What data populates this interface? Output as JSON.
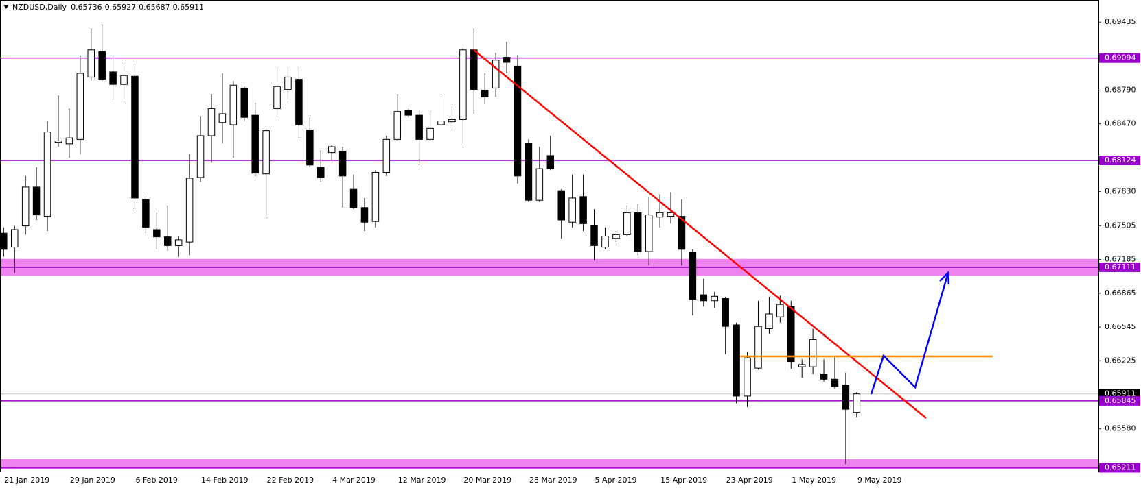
{
  "chart_data": {
    "type": "candlestick",
    "title": "NZDUSD,Daily",
    "header_values": [
      0.65736,
      0.65927,
      0.65687,
      0.65911
    ],
    "categories": [
      "21 Jan 2019",
      null,
      null,
      null,
      null,
      null,
      "29 Jan 2019",
      null,
      null,
      null,
      null,
      null,
      "6 Feb 2019",
      null,
      null,
      null,
      null,
      null,
      "14 Feb 2019",
      null,
      null,
      null,
      null,
      null,
      "22 Feb 2019",
      null,
      null,
      null,
      null,
      null,
      "4 Mar 2019",
      null,
      null,
      null,
      null,
      null,
      "12 Mar 2019",
      null,
      null,
      null,
      null,
      null,
      "20 Mar 2019",
      null,
      null,
      null,
      null,
      null,
      "28 Mar 2019",
      null,
      null,
      null,
      null,
      null,
      "5 Apr 2019",
      null,
      null,
      null,
      null,
      null,
      "15 Apr 2019",
      null,
      null,
      null,
      null,
      null,
      "23 Apr 2019",
      null,
      null,
      null,
      null,
      null,
      "1 May 2019",
      null,
      null,
      null,
      null,
      null,
      "9 May 2019"
    ],
    "ohlc": [
      [
        0.67434,
        0.67489,
        0.67211,
        0.67281
      ],
      [
        0.67302,
        0.67503,
        0.67058,
        0.67468
      ],
      [
        0.67503,
        0.67976,
        0.6742,
        0.67871
      ],
      [
        0.67871,
        0.68059,
        0.67559,
        0.67607
      ],
      [
        0.67594,
        0.68497,
        0.67454,
        0.68393
      ],
      [
        0.68295,
        0.6874,
        0.68254,
        0.68309
      ],
      [
        0.68281,
        0.68615,
        0.68149,
        0.68337
      ],
      [
        0.68323,
        0.69122,
        0.68184,
        0.68949
      ],
      [
        0.68914,
        0.69379,
        0.68879,
        0.69171
      ],
      [
        0.69157,
        0.69414,
        0.68865,
        0.68893
      ],
      [
        0.68962,
        0.69087,
        0.68705,
        0.68844
      ],
      [
        0.68844,
        0.69053,
        0.68671,
        0.68928
      ],
      [
        0.68921,
        0.69039,
        0.67663,
        0.67767
      ],
      [
        0.67753,
        0.67781,
        0.67434,
        0.67489
      ],
      [
        0.67468,
        0.67628,
        0.67281,
        0.67399
      ],
      [
        0.67399,
        0.67698,
        0.67267,
        0.67316
      ],
      [
        0.67316,
        0.67406,
        0.67211,
        0.67371
      ],
      [
        0.6735,
        0.68184,
        0.67225,
        0.67955
      ],
      [
        0.67962,
        0.68545,
        0.6792,
        0.68358
      ],
      [
        0.68358,
        0.68754,
        0.68101,
        0.68615
      ],
      [
        0.68483,
        0.68949,
        0.68288,
        0.68566
      ],
      [
        0.68462,
        0.68879,
        0.68149,
        0.68837
      ],
      [
        0.6881,
        0.68824,
        0.68497,
        0.68532
      ],
      [
        0.68552,
        0.68671,
        0.67976,
        0.68003
      ],
      [
        0.67996,
        0.68427,
        0.67573,
        0.68406
      ],
      [
        0.68615,
        0.69018,
        0.68532,
        0.68824
      ],
      [
        0.68796,
        0.69018,
        0.68705,
        0.68914
      ],
      [
        0.68893,
        0.69018,
        0.68337,
        0.68462
      ],
      [
        0.68413,
        0.68532,
        0.68059,
        0.6808
      ],
      [
        0.68059,
        0.68219,
        0.6792,
        0.67962
      ],
      [
        0.68198,
        0.68267,
        0.68128,
        0.68254
      ],
      [
        0.68212,
        0.68254,
        0.67677,
        0.67976
      ],
      [
        0.6785,
        0.67989,
        0.67663,
        0.67677
      ],
      [
        0.67677,
        0.67767,
        0.67454,
        0.67538
      ],
      [
        0.67545,
        0.68031,
        0.67489,
        0.6801
      ],
      [
        0.6801,
        0.68358,
        0.67976,
        0.68323
      ],
      [
        0.68323,
        0.68754,
        0.68309,
        0.68587
      ],
      [
        0.68601,
        0.68615,
        0.68532,
        0.68552
      ],
      [
        0.68552,
        0.68601,
        0.6808,
        0.68323
      ],
      [
        0.68323,
        0.68601,
        0.68309,
        0.68427
      ],
      [
        0.68462,
        0.68754,
        0.68448,
        0.68497
      ],
      [
        0.6849,
        0.68636,
        0.68406,
        0.68511
      ],
      [
        0.68511,
        0.69192,
        0.68288,
        0.69171
      ],
      [
        0.69171,
        0.69379,
        0.68566,
        0.68796
      ],
      [
        0.68789,
        0.68949,
        0.68657,
        0.68726
      ],
      [
        0.6881,
        0.69143,
        0.68726,
        0.69074
      ],
      [
        0.69101,
        0.69247,
        0.68949,
        0.69053
      ],
      [
        0.69018,
        0.69122,
        0.67906,
        0.67976
      ],
      [
        0.68288,
        0.68323,
        0.67732,
        0.67746
      ],
      [
        0.67746,
        0.68254,
        0.67732,
        0.68045
      ],
      [
        0.6817,
        0.68358,
        0.68031,
        0.68045
      ],
      [
        0.67837,
        0.6785,
        0.67385,
        0.67559
      ],
      [
        0.67538,
        0.67989,
        0.67489,
        0.67767
      ],
      [
        0.67781,
        0.67989,
        0.67454,
        0.67524
      ],
      [
        0.6751,
        0.67663,
        0.67176,
        0.67316
      ],
      [
        0.67302,
        0.67489,
        0.67281,
        0.67406
      ],
      [
        0.67385,
        0.67454,
        0.6735,
        0.6742
      ],
      [
        0.6742,
        0.67698,
        0.67406,
        0.67628
      ],
      [
        0.67628,
        0.67711,
        0.67225,
        0.6726
      ],
      [
        0.6726,
        0.67781,
        0.67128,
        0.67607
      ],
      [
        0.67587,
        0.67802,
        0.67489,
        0.67628
      ],
      [
        0.67594,
        0.67823,
        0.67524,
        0.67628
      ],
      [
        0.67594,
        0.67753,
        0.67128,
        0.67281
      ],
      [
        0.67253,
        0.67281,
        0.66655,
        0.66808
      ],
      [
        0.6685,
        0.67003,
        0.66739,
        0.66794
      ],
      [
        0.66794,
        0.66878,
        0.66725,
        0.66836
      ],
      [
        0.66815,
        0.66829,
        0.66287,
        0.66551
      ],
      [
        0.66565,
        0.66586,
        0.65821,
        0.6589
      ],
      [
        0.6589,
        0.66308,
        0.65786,
        0.66252
      ],
      [
        0.66155,
        0.66794,
        0.66141,
        0.66551
      ],
      [
        0.6653,
        0.66829,
        0.66481,
        0.66669
      ],
      [
        0.66641,
        0.66843,
        0.66586,
        0.66759
      ],
      [
        0.66739,
        0.66794,
        0.66148,
        0.66217
      ],
      [
        0.66168,
        0.66238,
        0.66064,
        0.66189
      ],
      [
        0.66168,
        0.6653,
        0.66099,
        0.66426
      ],
      [
        0.66099,
        0.66238,
        0.66029,
        0.6605
      ],
      [
        0.6605,
        0.66273,
        0.6596,
        0.65981
      ],
      [
        0.65995,
        0.66113,
        0.65244,
        0.65765
      ],
      [
        0.65736,
        0.65927,
        0.65687,
        0.65911
      ]
    ],
    "up_color": "#ffffff",
    "down_color": "#000000",
    "ylim": [
      0.65175,
      0.69644
    ],
    "yticks": [
      0.69435,
      {
        "value": 0.6879,
        "label": "0.68790"
      },
      {
        "value": 0.6847,
        "label": "0.68470"
      },
      {
        "value": 0.6783,
        "label": "0.67830"
      },
      0.67505,
      0.67185,
      0.66865,
      0.66545,
      0.66225,
      {
        "value": 0.6558,
        "label": "0.65580"
      }
    ],
    "levels": [
      {
        "value": 0.69094,
        "color": "#9900cc"
      },
      {
        "value": 0.68124,
        "color": "#9900cc"
      },
      {
        "value": 0.67111,
        "color": "#9900cc"
      },
      {
        "value": 0.65845,
        "color": "#9900cc"
      },
      {
        "value": 0.65211,
        "color": "#9900cc"
      }
    ],
    "zones": [
      {
        "range": [
          0.6719,
          0.6703
        ],
        "color": "#ee82ee"
      },
      {
        "range": [
          0.65293,
          0.65196
        ],
        "color": "#ee82ee"
      }
    ],
    "current_price": {
      "value": 0.65911,
      "line_color": "#c0c0c0",
      "label_color": "#000000"
    }
  }
}
